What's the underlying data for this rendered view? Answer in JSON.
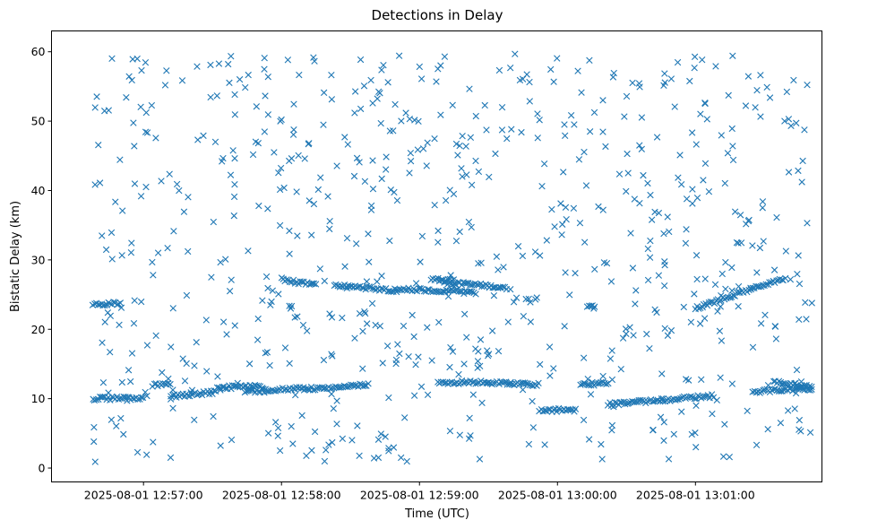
{
  "chart_data": {
    "type": "scatter",
    "title": "Detections in Delay",
    "xlabel": "Time (UTC)",
    "ylabel": "Bistatic Delay (km)",
    "marker": "x",
    "color": "#1f77b4",
    "grid": false,
    "x_axis": {
      "unit": "seconds after 2025-08-01 12:56:00 UTC",
      "xlim": [
        20,
        355
      ],
      "ticks": [
        60,
        120,
        180,
        240,
        300
      ],
      "tick_labels": [
        "2025-08-01 12:57:00",
        "2025-08-01 12:58:00",
        "2025-08-01 12:59:00",
        "2025-08-01 13:00:00",
        "2025-08-01 13:01:00"
      ]
    },
    "y_axis": {
      "ylim": [
        -2,
        63
      ],
      "ticks": [
        0,
        10,
        20,
        30,
        40,
        50,
        60
      ],
      "tick_labels": [
        "0",
        "10",
        "20",
        "30",
        "40",
        "50",
        "60"
      ]
    },
    "tracks": [
      {
        "t_start": 38,
        "t_end": 50,
        "delay_start": 23.5,
        "delay_end": 23.8
      },
      {
        "t_start": 38,
        "t_end": 60,
        "delay_start": 10.0,
        "delay_end": 10.1
      },
      {
        "t_start": 64,
        "t_end": 72,
        "delay_start": 12.0,
        "delay_end": 12.0
      },
      {
        "t_start": 72,
        "t_end": 92,
        "delay_start": 10.3,
        "delay_end": 11.0
      },
      {
        "t_start": 92,
        "t_end": 112,
        "delay_start": 11.6,
        "delay_end": 11.8
      },
      {
        "t_start": 104,
        "t_end": 130,
        "delay_start": 11.0,
        "delay_end": 11.6
      },
      {
        "t_start": 130,
        "t_end": 158,
        "delay_start": 11.4,
        "delay_end": 12.0
      },
      {
        "t_start": 120,
        "t_end": 135,
        "delay_start": 27.2,
        "delay_end": 26.3
      },
      {
        "t_start": 143,
        "t_end": 170,
        "delay_start": 26.4,
        "delay_end": 25.6
      },
      {
        "t_start": 170,
        "t_end": 205,
        "delay_start": 25.8,
        "delay_end": 25.3
      },
      {
        "t_start": 185,
        "t_end": 195,
        "delay_start": 27.2,
        "delay_end": 27.0
      },
      {
        "t_start": 190,
        "t_end": 218,
        "delay_start": 26.8,
        "delay_end": 26.0
      },
      {
        "t_start": 188,
        "t_end": 210,
        "delay_start": 12.3,
        "delay_end": 12.4
      },
      {
        "t_start": 210,
        "t_end": 232,
        "delay_start": 12.3,
        "delay_end": 12.0
      },
      {
        "t_start": 233,
        "t_end": 248,
        "delay_start": 8.3,
        "delay_end": 8.4
      },
      {
        "t_start": 250,
        "t_end": 262,
        "delay_start": 12.1,
        "delay_end": 12.2
      },
      {
        "t_start": 253,
        "t_end": 256,
        "delay_start": 23.5,
        "delay_end": 23.4
      },
      {
        "t_start": 262,
        "t_end": 308,
        "delay_start": 9.2,
        "delay_end": 10.4
      },
      {
        "t_start": 300,
        "t_end": 324,
        "delay_start": 23.0,
        "delay_end": 25.8
      },
      {
        "t_start": 324,
        "t_end": 339,
        "delay_start": 26.0,
        "delay_end": 27.3
      },
      {
        "t_start": 325,
        "t_end": 351,
        "delay_start": 11.0,
        "delay_end": 11.5
      },
      {
        "t_start": 334,
        "t_end": 351,
        "delay_start": 12.4,
        "delay_end": 11.6
      }
    ],
    "clutter": {
      "t_range": [
        38,
        351
      ],
      "delay_range": [
        0.8,
        59.8
      ],
      "approx_count": 720
    }
  }
}
